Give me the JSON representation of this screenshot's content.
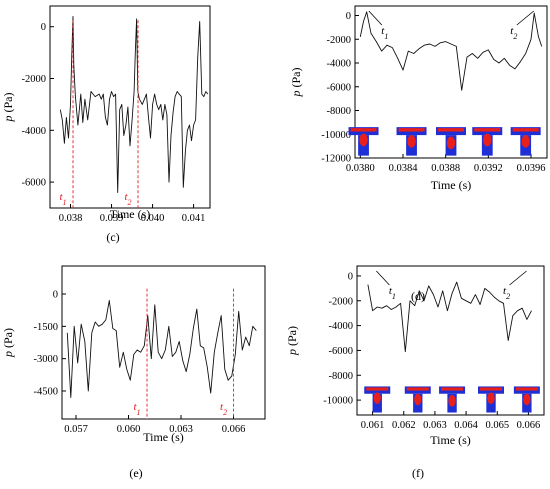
{
  "chart_data": [
    {
      "panel": "(c)",
      "type": "line",
      "xlabel": "Time (s)",
      "ylabel": "p (Pa)",
      "xlim": [
        0.0375,
        0.0414
      ],
      "ylim": [
        -7000,
        800
      ],
      "xticks": [
        0.038,
        0.039,
        0.04,
        0.041
      ],
      "xtick_labels": [
        "0.038",
        "0.039",
        "0.040",
        "0.041"
      ],
      "yticks": [
        0,
        -2000,
        -4000,
        -6000
      ],
      "ytick_labels": [
        "0",
        "-2000",
        "-4000",
        "-6000"
      ],
      "grid": false,
      "series": [
        {
          "x": [
            0.03775,
            0.0378,
            0.03785,
            0.0379,
            0.03795,
            0.038,
            0.03803,
            0.03806,
            0.03808,
            0.03812,
            0.03818,
            0.03825,
            0.0383,
            0.03835,
            0.03842,
            0.0385,
            0.0386,
            0.0387,
            0.03875,
            0.0388,
            0.03885,
            0.0389,
            0.03895,
            0.039,
            0.03905,
            0.0391,
            0.03915,
            0.0392,
            0.03925,
            0.0393,
            0.03935,
            0.0394,
            0.03945,
            0.0395,
            0.03955,
            0.03958,
            0.03961,
            0.03964,
            0.03968,
            0.03975,
            0.03985,
            0.0399,
            0.03995,
            0.04,
            0.04005,
            0.0401,
            0.04015,
            0.0402,
            0.04025,
            0.0403,
            0.04035,
            0.0404,
            0.04045,
            0.0405,
            0.04055,
            0.0406,
            0.04065,
            0.0407,
            0.04075,
            0.0408,
            0.04085,
            0.0409,
            0.04095,
            0.041,
            0.04105,
            0.0411,
            0.04115,
            0.0412,
            0.04125,
            0.0413,
            0.04135
          ],
          "y": [
            -3200,
            -3600,
            -4500,
            -3500,
            -4300,
            -3000,
            -1200,
            400,
            -1500,
            -2700,
            -3800,
            -2600,
            -3700,
            -2800,
            -3600,
            -2500,
            -2700,
            -2600,
            -2800,
            -2600,
            -3500,
            -3800,
            -2800,
            -2500,
            -2700,
            -2600,
            -6400,
            -3200,
            -3000,
            -4200,
            -3800,
            -3100,
            -4600,
            -3600,
            -2500,
            -1000,
            300,
            -2500,
            -2800,
            -3000,
            -2600,
            -3500,
            -4300,
            -3000,
            -2600,
            -3000,
            -3200,
            -3000,
            -3600,
            -3000,
            -3400,
            -6000,
            -4200,
            -3300,
            -2700,
            -2500,
            -2600,
            -2700,
            -6200,
            -4800,
            -4000,
            -3800,
            -4400,
            -3800,
            -3600,
            -1200,
            200,
            -2600,
            -2700,
            -2500,
            -2600
          ]
        }
      ],
      "annotations": [
        {
          "text": "t",
          "sub": "1",
          "x": 0.038061
        },
        {
          "text": "t",
          "sub": "2",
          "x": 0.039645
        }
      ]
    },
    {
      "panel": "(d)",
      "type": "line",
      "xlabel": "Time (s)",
      "ylabel": "p (Pa)",
      "xlim": [
        0.03795,
        0.03975
      ],
      "ylim": [
        -12000,
        800
      ],
      "xticks": [
        0.038,
        0.0384,
        0.0388,
        0.0392,
        0.0396
      ],
      "xtick_labels": [
        "0.0380",
        "0.0384",
        "0.0388",
        "0.0392",
        "0.0396"
      ],
      "yticks": [
        0,
        -2000,
        -4000,
        -6000,
        -8000,
        -10000,
        -12000
      ],
      "ytick_labels": [
        "0",
        "-2000",
        "-4000",
        "-6000",
        "-8000",
        "-10000",
        "-12000"
      ],
      "grid": false,
      "series": [
        {
          "x": [
            0.038,
            0.03803,
            0.03806,
            0.0381,
            0.03815,
            0.0382,
            0.03825,
            0.0383,
            0.03835,
            0.0384,
            0.03845,
            0.0385,
            0.03855,
            0.0386,
            0.03865,
            0.0387,
            0.03875,
            0.0388,
            0.03885,
            0.0389,
            0.03895,
            0.039,
            0.03905,
            0.0391,
            0.03915,
            0.0392,
            0.03925,
            0.0393,
            0.03935,
            0.0394,
            0.03945,
            0.0395,
            0.03955,
            0.0396,
            0.03963,
            0.03967,
            0.0397
          ],
          "y": [
            -1800,
            -500,
            300,
            -1500,
            -2200,
            -3000,
            -2500,
            -2700,
            -3600,
            -4600,
            -3000,
            -3200,
            -2800,
            -2500,
            -2400,
            -2600,
            -2300,
            -2200,
            -2400,
            -2600,
            -6300,
            -3500,
            -3200,
            -3600,
            -3100,
            -2900,
            -3700,
            -4000,
            -3600,
            -4200,
            -4500,
            -3900,
            -3200,
            -2000,
            200,
            -1800,
            -2600
          ]
        }
      ],
      "annotations": [
        {
          "text": "t",
          "sub": "1",
          "x": 0.038061
        },
        {
          "text": "t",
          "sub": "2",
          "x": 0.039645
        }
      ]
    },
    {
      "panel": "(e)",
      "type": "line",
      "xlabel": "Time (s)",
      "ylabel": "p (Pa)",
      "xlim": [
        0.0562,
        0.0678
      ],
      "ylim": [
        -5800,
        1300
      ],
      "xticks": [
        0.057,
        0.06,
        0.063,
        0.066
      ],
      "xtick_labels": [
        "0.057",
        "0.060",
        "0.063",
        "0.066"
      ],
      "yticks": [
        0,
        -1500,
        -3000,
        -4500
      ],
      "ytick_labels": [
        "0",
        "-1500",
        "-3000",
        "-4500"
      ],
      "grid": false,
      "series": [
        {
          "x": [
            0.0565,
            0.0567,
            0.0569,
            0.0571,
            0.0573,
            0.0575,
            0.0577,
            0.0579,
            0.0581,
            0.0583,
            0.0585,
            0.0587,
            0.0589,
            0.0591,
            0.0593,
            0.0595,
            0.0597,
            0.0599,
            0.0601,
            0.0603,
            0.0605,
            0.0607,
            0.0609,
            0.0611,
            0.0613,
            0.0615,
            0.0617,
            0.0619,
            0.0621,
            0.0623,
            0.0625,
            0.0627,
            0.0629,
            0.0631,
            0.0633,
            0.0635,
            0.0637,
            0.0639,
            0.0641,
            0.0643,
            0.0645,
            0.0647,
            0.0649,
            0.0651,
            0.0653,
            0.0655,
            0.0657,
            0.0659,
            0.0661,
            0.0663,
            0.0665,
            0.0667,
            0.0669,
            0.0671,
            0.0673
          ],
          "y": [
            -1800,
            -4800,
            -1500,
            -3200,
            -1400,
            -2200,
            -4500,
            -1800,
            -1300,
            -1500,
            -1400,
            -1200,
            -300,
            -1600,
            -1700,
            -3400,
            -2700,
            -3500,
            -4000,
            -2800,
            -2600,
            -2700,
            -2400,
            -1000,
            -3000,
            -500,
            -2700,
            -3000,
            -2600,
            -1500,
            -2900,
            -2700,
            -2200,
            -3100,
            -3600,
            -2800,
            -1600,
            -700,
            -2400,
            -2500,
            -3400,
            -4600,
            -2700,
            -1800,
            -1000,
            -3500,
            -4000,
            -3800,
            -2800,
            -800,
            -2600,
            -2000,
            -2400,
            -1500,
            -1700
          ]
        }
      ],
      "annotations": [
        {
          "text": "t",
          "sub": "1",
          "x": 0.061058
        },
        {
          "text": "t",
          "sub": "2",
          "x": 0.066004
        }
      ]
    },
    {
      "panel": "(f)",
      "type": "line",
      "xlabel": "Time (s)",
      "ylabel": "p (Pa)",
      "xlim": [
        0.0605,
        0.0665
      ],
      "ylim": [
        -11200,
        800
      ],
      "xticks": [
        0.061,
        0.062,
        0.063,
        0.064,
        0.065,
        0.066
      ],
      "xtick_labels": [
        "0.061",
        "0.062",
        "0.063",
        "0.064",
        "0.065",
        "0.066"
      ],
      "yticks": [
        0,
        -2000,
        -4000,
        -6000,
        -8000,
        -10000
      ],
      "ytick_labels": [
        "0",
        "-2000",
        "-4000",
        "-6000",
        "-8000",
        "-10000"
      ],
      "grid": false,
      "series": [
        {
          "x": [
            0.06085,
            0.061,
            0.06115,
            0.0613,
            0.06145,
            0.0616,
            0.06175,
            0.0619,
            0.06205,
            0.0622,
            0.06235,
            0.0625,
            0.06265,
            0.0628,
            0.06295,
            0.0631,
            0.06325,
            0.0634,
            0.06355,
            0.0637,
            0.06385,
            0.064,
            0.06415,
            0.0643,
            0.06445,
            0.0646,
            0.06475,
            0.0649,
            0.06505,
            0.0652,
            0.06535,
            0.0655,
            0.06565,
            0.0658,
            0.06595,
            0.0661
          ],
          "y": [
            -700,
            -2800,
            -2500,
            -2600,
            -2400,
            -2700,
            -2500,
            -2200,
            -6100,
            -2000,
            -2400,
            -1200,
            -2000,
            -800,
            -1500,
            -2500,
            -1200,
            -2800,
            -1400,
            -500,
            -1800,
            -2000,
            -2200,
            -1500,
            -2300,
            -1000,
            -1300,
            -1700,
            -2000,
            -2200,
            -5200,
            -3200,
            -2800,
            -2600,
            -3500,
            -2800
          ]
        }
      ],
      "annotations": [
        {
          "text": "t",
          "sub": "1",
          "x": 0.061058
        },
        {
          "text": "t",
          "sub": "2",
          "x": 0.066004
        }
      ]
    }
  ],
  "panel_letters": [
    "(c)",
    "(d)",
    "(e)",
    "(f)"
  ],
  "colors": {
    "line": "#111111",
    "marker": "#e02020",
    "fluid_blue": "#1f2fd6",
    "fluid_red": "#e8201c"
  }
}
